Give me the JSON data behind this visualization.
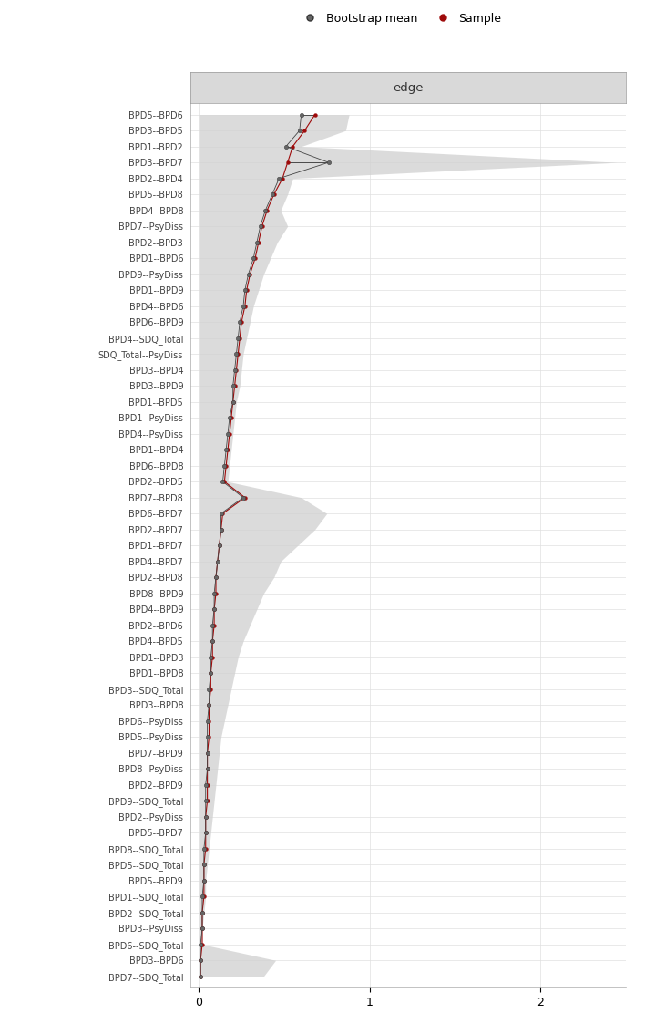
{
  "labels": [
    "BPD5--BPD6",
    "BPD3--BPD5",
    "BPD1--BPD2",
    "BPD3--BPD7",
    "BPD2--BPD4",
    "BPD5--BPD8",
    "BPD4--BPD8",
    "BPD7--PsyDiss",
    "BPD2--BPD3",
    "BPD1--BPD6",
    "BPD9--PsyDiss",
    "BPD1--BPD9",
    "BPD4--BPD6",
    "BPD6--BPD9",
    "BPD4--SDQ_Total",
    "SDQ_Total--PsyDiss",
    "BPD3--BPD4",
    "BPD3--BPD9",
    "BPD1--BPD5",
    "BPD1--PsyDiss",
    "BPD4--PsyDiss",
    "BPD1--BPD4",
    "BPD6--BPD8",
    "BPD2--BPD5",
    "BPD7--BPD8",
    "BPD6--BPD7",
    "BPD2--BPD7",
    "BPD1--BPD7",
    "BPD4--BPD7",
    "BPD2--BPD8",
    "BPD8--BPD9",
    "BPD4--BPD9",
    "BPD2--BPD6",
    "BPD4--BPD5",
    "BPD1--BPD3",
    "BPD1--BPD8",
    "BPD3--SDQ_Total",
    "BPD3--BPD8",
    "BPD6--PsyDiss",
    "BPD5--PsyDiss",
    "BPD7--BPD9",
    "BPD8--PsyDiss",
    "BPD2--BPD9",
    "BPD9--SDQ_Total",
    "BPD2--PsyDiss",
    "BPD5--BPD7",
    "BPD8--SDQ_Total",
    "BPD5--SDQ_Total",
    "BPD5--BPD9",
    "BPD1--SDQ_Total",
    "BPD2--SDQ_Total",
    "BPD3--PsyDiss",
    "BPD6--SDQ_Total",
    "BPD3--BPD6",
    "BPD7--SDQ_Total"
  ],
  "sample_values": [
    0.68,
    0.62,
    0.55,
    0.52,
    0.49,
    0.44,
    0.4,
    0.37,
    0.35,
    0.33,
    0.3,
    0.28,
    0.27,
    0.25,
    0.24,
    0.23,
    0.22,
    0.21,
    0.2,
    0.19,
    0.18,
    0.17,
    0.16,
    0.15,
    0.27,
    0.14,
    0.13,
    0.12,
    0.11,
    0.1,
    0.1,
    0.09,
    0.09,
    0.08,
    0.08,
    0.07,
    0.07,
    0.06,
    0.06,
    0.06,
    0.05,
    0.05,
    0.05,
    0.05,
    0.04,
    0.04,
    0.04,
    0.03,
    0.03,
    0.03,
    0.02,
    0.02,
    0.02,
    0.01,
    0.01
  ],
  "boot_mean_values": [
    0.6,
    0.59,
    0.51,
    0.76,
    0.47,
    0.43,
    0.39,
    0.36,
    0.34,
    0.32,
    0.29,
    0.27,
    0.26,
    0.24,
    0.23,
    0.22,
    0.21,
    0.2,
    0.2,
    0.18,
    0.17,
    0.16,
    0.15,
    0.14,
    0.26,
    0.13,
    0.13,
    0.12,
    0.11,
    0.1,
    0.09,
    0.09,
    0.08,
    0.08,
    0.07,
    0.07,
    0.06,
    0.06,
    0.05,
    0.05,
    0.05,
    0.05,
    0.04,
    0.04,
    0.04,
    0.04,
    0.03,
    0.03,
    0.03,
    0.02,
    0.02,
    0.02,
    0.01,
    0.01,
    0.01
  ],
  "ci_lower": [
    0.0,
    0.0,
    0.0,
    0.0,
    0.0,
    0.0,
    0.0,
    0.0,
    0.0,
    0.0,
    0.0,
    0.0,
    0.0,
    0.0,
    0.0,
    0.0,
    0.0,
    0.0,
    0.0,
    0.0,
    0.0,
    0.0,
    0.0,
    0.0,
    0.0,
    0.0,
    0.0,
    0.0,
    0.0,
    0.0,
    0.0,
    0.0,
    0.0,
    0.0,
    0.0,
    0.0,
    0.0,
    0.0,
    0.0,
    0.0,
    0.0,
    0.0,
    0.0,
    0.0,
    0.0,
    0.0,
    0.0,
    0.0,
    0.0,
    0.0,
    0.0,
    0.0,
    0.0,
    0.0,
    0.0
  ],
  "ci_upper": [
    0.88,
    0.86,
    0.6,
    2.45,
    0.55,
    0.52,
    0.48,
    0.52,
    0.46,
    0.42,
    0.38,
    0.35,
    0.32,
    0.3,
    0.28,
    0.26,
    0.25,
    0.24,
    0.22,
    0.21,
    0.2,
    0.19,
    0.18,
    0.17,
    0.6,
    0.75,
    0.68,
    0.58,
    0.48,
    0.44,
    0.38,
    0.34,
    0.3,
    0.26,
    0.23,
    0.21,
    0.19,
    0.17,
    0.15,
    0.13,
    0.12,
    0.11,
    0.1,
    0.09,
    0.08,
    0.07,
    0.06,
    0.05,
    0.04,
    0.04,
    0.03,
    0.02,
    0.02,
    0.45,
    0.38
  ],
  "panel_title": "edge",
  "xlim": [
    -0.05,
    2.5
  ],
  "xticks": [
    0,
    1,
    2
  ],
  "legend_bootstrap_color": "#333333",
  "legend_sample_color": "#9e0a0a",
  "ci_fill_color": "#d0d0d0",
  "plot_bg_color": "#ffffff",
  "header_bg_color": "#d9d9d9",
  "grid_color": "#dddddd"
}
